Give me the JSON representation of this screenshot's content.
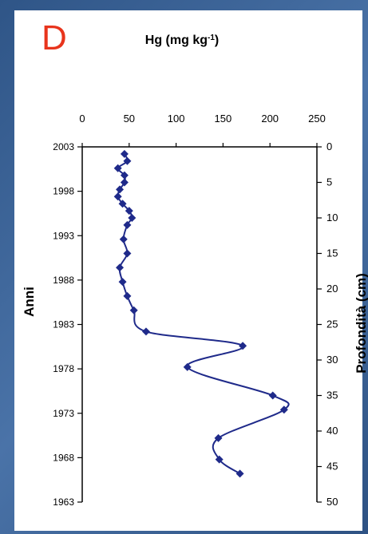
{
  "chart_data": {
    "type": "line",
    "panel_letter": "D",
    "title": "Hg (mg kg⁻¹)",
    "xlabel": "Hg (mg kg⁻¹)",
    "ylabel_left": "Anni",
    "ylabel_right": "Profondità (cm)",
    "xlim": [
      0,
      250
    ],
    "x_ticks": [
      "0",
      "50",
      "100",
      "150",
      "200",
      "250"
    ],
    "depth_lim": [
      0,
      50
    ],
    "depth_ticks": [
      "0",
      "5",
      "10",
      "15",
      "20",
      "25",
      "30",
      "35",
      "40",
      "45",
      "50"
    ],
    "year_ticks": [
      "2003",
      "1998",
      "1993",
      "1988",
      "1983",
      "1978",
      "1973",
      "1968",
      "1963"
    ],
    "grid": false,
    "colors": {
      "series": "#1f2a8a",
      "panel_letter": "#e8341c"
    },
    "series": [
      {
        "points": [
          {
            "hg": 45,
            "depth": 1
          },
          {
            "hg": 48,
            "depth": 2
          },
          {
            "hg": 38,
            "depth": 3
          },
          {
            "hg": 45,
            "depth": 4
          },
          {
            "hg": 45,
            "depth": 5
          },
          {
            "hg": 40,
            "depth": 6
          },
          {
            "hg": 38,
            "depth": 7
          },
          {
            "hg": 43,
            "depth": 8
          },
          {
            "hg": 50,
            "depth": 9
          },
          {
            "hg": 53,
            "depth": 10
          },
          {
            "hg": 48,
            "depth": 11
          },
          {
            "hg": 44,
            "depth": 13
          },
          {
            "hg": 48,
            "depth": 15
          },
          {
            "hg": 40,
            "depth": 17
          },
          {
            "hg": 43,
            "depth": 19
          },
          {
            "hg": 48,
            "depth": 21
          },
          {
            "hg": 55,
            "depth": 23
          },
          {
            "hg": 68,
            "depth": 26
          },
          {
            "hg": 171,
            "depth": 28
          },
          {
            "hg": 112,
            "depth": 31
          },
          {
            "hg": 203,
            "depth": 35
          },
          {
            "hg": 215,
            "depth": 37
          },
          {
            "hg": 145,
            "depth": 41
          },
          {
            "hg": 146,
            "depth": 44
          },
          {
            "hg": 168,
            "depth": 46
          }
        ]
      }
    ]
  }
}
